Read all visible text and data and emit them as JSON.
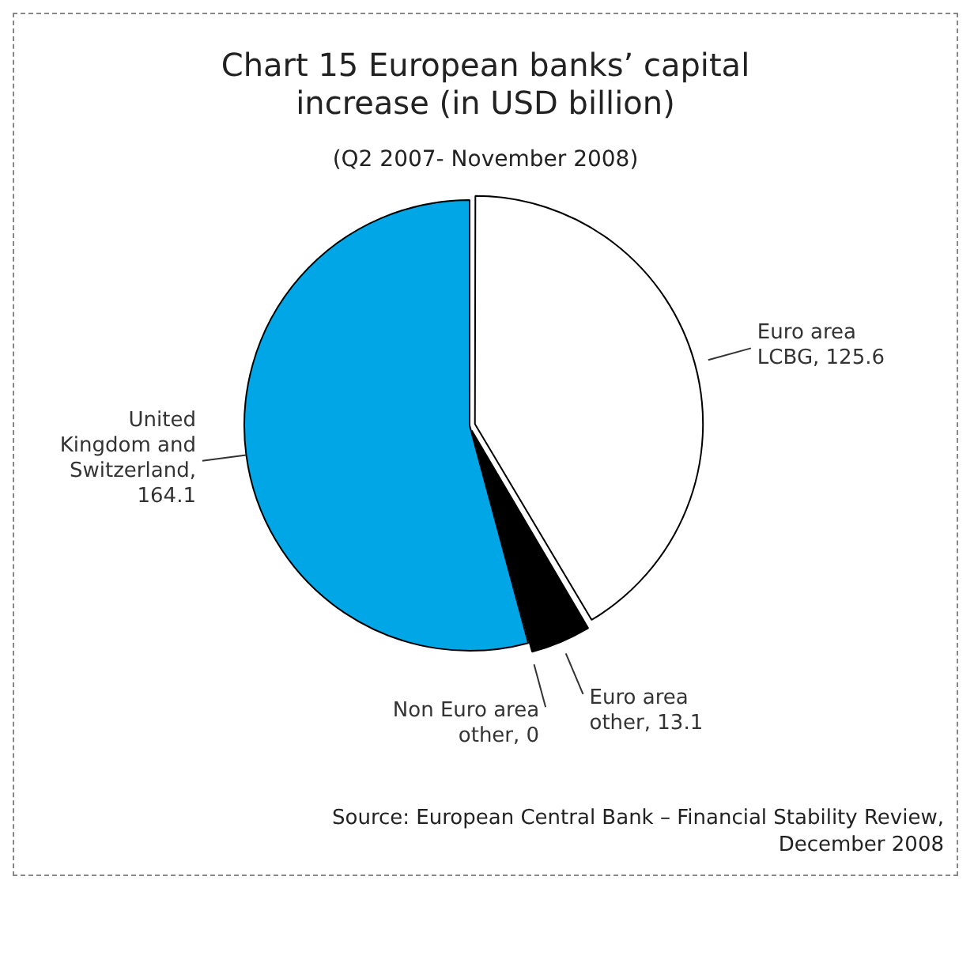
{
  "chart_data": {
    "type": "pie",
    "title": "Chart 15 European banks’ capital increase (in USD billion)",
    "subtitle": "(Q2 2007- November 2008)",
    "categories": [
      "Euro area LCBG",
      "Euro area other",
      "Non Euro area other",
      "United Kingdom and Switzerland"
    ],
    "values": [
      125.6,
      13.1,
      0,
      164.1
    ],
    "colors": [
      "#ffffff",
      "#000000",
      "#808080",
      "#00a6e6"
    ],
    "value_labels": [
      ", 125.6",
      ", 13.1",
      ", 0",
      ", 164.1"
    ],
    "legend": false,
    "annotations": [
      "Source: European Central Bank – Financial Stability Review, December 2008"
    ]
  }
}
